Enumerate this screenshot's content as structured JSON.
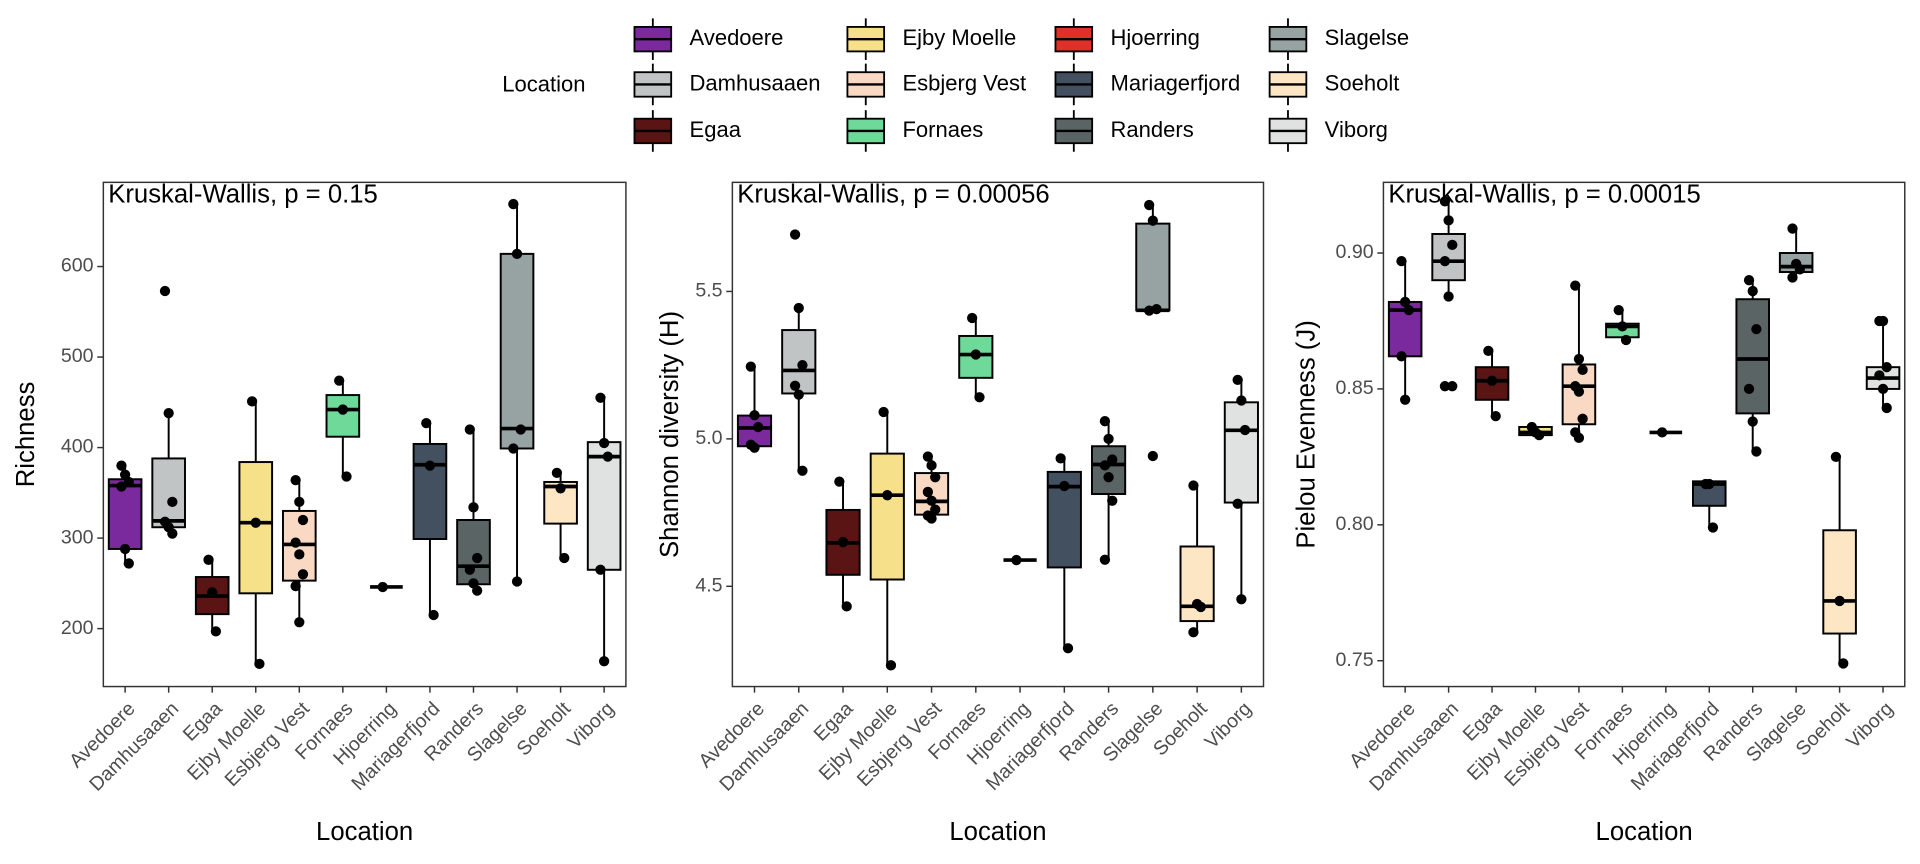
{
  "chart_data": [
    {
      "type": "box",
      "annotation": "Kruskal-Wallis, p = 0.15",
      "xlabel": "Location",
      "ylabel": "Richness",
      "legend_title": "Location",
      "categories": [
        "Avedoere",
        "Damhusaaen",
        "Egaa",
        "Ejby Moelle",
        "Esbjerg Vest",
        "Fornaes",
        "Hjoerring",
        "Mariagerfjord",
        "Randers",
        "Slagelse",
        "Soeholt",
        "Viborg"
      ],
      "colors": [
        "#7b2a9e",
        "#c0c4c4",
        "#5a1414",
        "#f6e08a",
        "#f9d9c3",
        "#6fd99a",
        "#e0302a",
        "#435060",
        "#5b6464",
        "#97a3a2",
        "#fde6c3",
        "#e0e2e2"
      ],
      "ylim": [
        136,
        693
      ],
      "yticks": [
        200,
        300,
        400,
        500,
        600
      ],
      "boxes": [
        {
          "low": 272,
          "q1": 288,
          "median": 358,
          "q3": 365,
          "high": 382,
          "points": [
            380,
            370,
            362,
            357,
            288,
            272
          ]
        },
        {
          "low": 305,
          "q1": 312,
          "median": 319,
          "q3": 388,
          "high": 439,
          "points": [
            573,
            438,
            340,
            318,
            312,
            305
          ]
        },
        {
          "low": 197,
          "q1": 216,
          "median": 236,
          "q3": 257,
          "high": 278,
          "points": [
            276,
            240,
            197
          ]
        },
        {
          "low": 161,
          "q1": 239,
          "median": 317,
          "q3": 384,
          "high": 452,
          "points": [
            451,
            317,
            161
          ]
        },
        {
          "low": 207,
          "q1": 253,
          "median": 293,
          "q3": 330,
          "high": 366,
          "points": [
            364,
            340,
            320,
            295,
            282,
            260,
            247,
            207
          ]
        },
        {
          "low": 368,
          "q1": 412,
          "median": 442,
          "q3": 458,
          "high": 476,
          "points": [
            474,
            442,
            368
          ]
        },
        {
          "low": 246,
          "q1": 246,
          "median": 246,
          "q3": 246,
          "high": 246,
          "points": [
            246
          ]
        },
        {
          "low": 216,
          "q1": 299,
          "median": 381,
          "q3": 404,
          "high": 430,
          "points": [
            427,
            380,
            215
          ]
        },
        {
          "low": 241,
          "q1": 249,
          "median": 269,
          "q3": 320,
          "high": 420,
          "points": [
            420,
            334,
            278,
            265,
            250,
            242
          ]
        },
        {
          "low": 252,
          "q1": 399,
          "median": 421,
          "q3": 614,
          "high": 669,
          "points": [
            669,
            614,
            420,
            399,
            252
          ]
        },
        {
          "low": 278,
          "q1": 316,
          "median": 357,
          "q3": 362,
          "high": 372,
          "points": [
            372,
            355,
            278
          ]
        },
        {
          "low": 164,
          "q1": 265,
          "median": 390,
          "q3": 406,
          "high": 455,
          "points": [
            455,
            405,
            390,
            265,
            164
          ]
        }
      ]
    },
    {
      "type": "box",
      "annotation": "Kruskal-Wallis, p = 0.00056",
      "xlabel": "Location",
      "ylabel": "Shannon diversity (H)",
      "categories": [
        "Avedoere",
        "Damhusaaen",
        "Egaa",
        "Ejby Moelle",
        "Esbjerg Vest",
        "Fornaes",
        "Hjoerring",
        "Mariagerfjord",
        "Randers",
        "Slagelse",
        "Soeholt",
        "Viborg"
      ],
      "colors": [
        "#7b2a9e",
        "#c0c4c4",
        "#5a1414",
        "#f6e08a",
        "#f9d9c3",
        "#6fd99a",
        "#e0302a",
        "#435060",
        "#5b6464",
        "#97a3a2",
        "#fde6c3",
        "#e0e2e2"
      ],
      "ylim": [
        4.16,
        5.87
      ],
      "yticks": [
        4.5,
        {
          "value": 5,
          "label": "5.0"
        },
        5.5
      ],
      "boxes": [
        {
          "low": 4.963,
          "q1": 4.975,
          "median": 5.037,
          "q3": 5.079,
          "high": 5.245,
          "points": [
            5.245,
            5.08,
            5.04,
            4.98,
            4.97
          ]
        },
        {
          "low": 4.892,
          "q1": 5.154,
          "median": 5.232,
          "q3": 5.369,
          "high": 5.444,
          "points": [
            5.693,
            5.444,
            5.25,
            5.18,
            5.15,
            4.892
          ]
        },
        {
          "low": 4.432,
          "q1": 4.539,
          "median": 4.647,
          "q3": 4.759,
          "high": 4.855,
          "points": [
            4.855,
            4.65,
            4.432
          ]
        },
        {
          "low": 4.232,
          "q1": 4.523,
          "median": 4.809,
          "q3": 4.95,
          "high": 5.091,
          "points": [
            5.091,
            4.809,
            4.232
          ]
        },
        {
          "low": 4.726,
          "q1": 4.743,
          "median": 4.788,
          "q3": 4.884,
          "high": 4.946,
          "points": [
            4.94,
            4.91,
            4.87,
            4.82,
            4.79,
            4.76,
            4.74,
            4.73
          ]
        },
        {
          "low": 5.141,
          "q1": 5.207,
          "median": 5.286,
          "q3": 5.349,
          "high": 5.411,
          "points": [
            5.41,
            5.286,
            5.141
          ]
        },
        {
          "low": 4.589,
          "q1": 4.589,
          "median": 4.589,
          "q3": 4.589,
          "high": 4.589,
          "points": [
            4.589
          ]
        },
        {
          "low": 4.29,
          "q1": 4.564,
          "median": 4.838,
          "q3": 4.888,
          "high": 4.934,
          "points": [
            4.934,
            4.84,
            4.29
          ]
        },
        {
          "low": 4.589,
          "q1": 4.813,
          "median": 4.913,
          "q3": 4.975,
          "high": 5.062,
          "points": [
            5.06,
            5.0,
            4.93,
            4.91,
            4.87,
            4.79,
            4.59
          ]
        },
        {
          "low": 5.436,
          "q1": 5.436,
          "median": 5.436,
          "q3": 5.73,
          "high": 5.793,
          "points": [
            5.793,
            5.74,
            5.44,
            5.435,
            4.942
          ]
        },
        {
          "low": 4.344,
          "q1": 4.382,
          "median": 4.432,
          "q3": 4.635,
          "high": 4.842,
          "points": [
            4.842,
            4.44,
            4.43,
            4.344
          ]
        },
        {
          "low": 4.456,
          "q1": 4.784,
          "median": 5.029,
          "q3": 5.124,
          "high": 5.199,
          "points": [
            5.2,
            5.13,
            5.03,
            4.78,
            4.456
          ]
        }
      ]
    },
    {
      "type": "box",
      "annotation": "Kruskal-Wallis, p = 0.00015",
      "xlabel": "Location",
      "ylabel": "Pielou Evenness (J)",
      "categories": [
        "Avedoere",
        "Damhusaaen",
        "Egaa",
        "Ejby Moelle",
        "Esbjerg Vest",
        "Fornaes",
        "Hjoerring",
        "Mariagerfjord",
        "Randers",
        "Slagelse",
        "Soeholt",
        "Viborg"
      ],
      "colors": [
        "#7b2a9e",
        "#c0c4c4",
        "#5a1414",
        "#f6e08a",
        "#f9d9c3",
        "#6fd99a",
        "#e0302a",
        "#435060",
        "#5b6464",
        "#97a3a2",
        "#fde6c3",
        "#e0e2e2"
      ],
      "ylim": [
        0.7405,
        0.926
      ],
      "yticks": [
        0.75,
        {
          "value": 0.8,
          "label": "0.80"
        },
        0.85,
        {
          "value": 0.9,
          "label": "0.90"
        }
      ],
      "boxes": [
        {
          "low": 0.846,
          "q1": 0.862,
          "median": 0.879,
          "q3": 0.882,
          "high": 0.897,
          "points": [
            0.897,
            0.882,
            0.879,
            0.862,
            0.846
          ]
        },
        {
          "low": 0.884,
          "q1": 0.89,
          "median": 0.897,
          "q3": 0.907,
          "high": 0.92,
          "points": [
            0.919,
            0.912,
            0.903,
            0.897,
            0.884,
            0.851,
            0.851
          ]
        },
        {
          "low": 0.84,
          "q1": 0.846,
          "median": 0.853,
          "q3": 0.858,
          "high": 0.864,
          "points": [
            0.864,
            0.853,
            0.84
          ]
        },
        {
          "low": 0.833,
          "q1": 0.833,
          "median": 0.834,
          "q3": 0.836,
          "high": 0.836,
          "points": [
            0.836,
            0.834,
            0.833
          ]
        },
        {
          "low": 0.832,
          "q1": 0.837,
          "median": 0.851,
          "q3": 0.859,
          "high": 0.888,
          "points": [
            0.888,
            0.861,
            0.857,
            0.851,
            0.849,
            0.839,
            0.834,
            0.832
          ]
        },
        {
          "low": 0.868,
          "q1": 0.869,
          "median": 0.873,
          "q3": 0.874,
          "high": 0.879,
          "points": [
            0.879,
            0.873,
            0.868
          ]
        },
        {
          "low": 0.834,
          "q1": 0.834,
          "median": 0.834,
          "q3": 0.834,
          "high": 0.834,
          "points": [
            0.834
          ]
        },
        {
          "low": 0.799,
          "q1": 0.807,
          "median": 0.815,
          "q3": 0.816,
          "high": 0.816,
          "points": [
            0.815,
            0.815,
            0.799
          ]
        },
        {
          "low": 0.827,
          "q1": 0.841,
          "median": 0.861,
          "q3": 0.883,
          "high": 0.89,
          "points": [
            0.89,
            0.886,
            0.872,
            0.85,
            0.838,
            0.827
          ]
        },
        {
          "low": 0.891,
          "q1": 0.893,
          "median": 0.895,
          "q3": 0.9,
          "high": 0.909,
          "points": [
            0.909,
            0.896,
            0.894,
            0.891
          ]
        },
        {
          "low": 0.749,
          "q1": 0.76,
          "median": 0.772,
          "q3": 0.798,
          "high": 0.825,
          "points": [
            0.825,
            0.772,
            0.749
          ]
        },
        {
          "low": 0.842,
          "q1": 0.85,
          "median": 0.854,
          "q3": 0.858,
          "high": 0.875,
          "points": [
            0.875,
            0.875,
            0.858,
            0.855,
            0.85,
            0.843
          ]
        }
      ]
    }
  ]
}
